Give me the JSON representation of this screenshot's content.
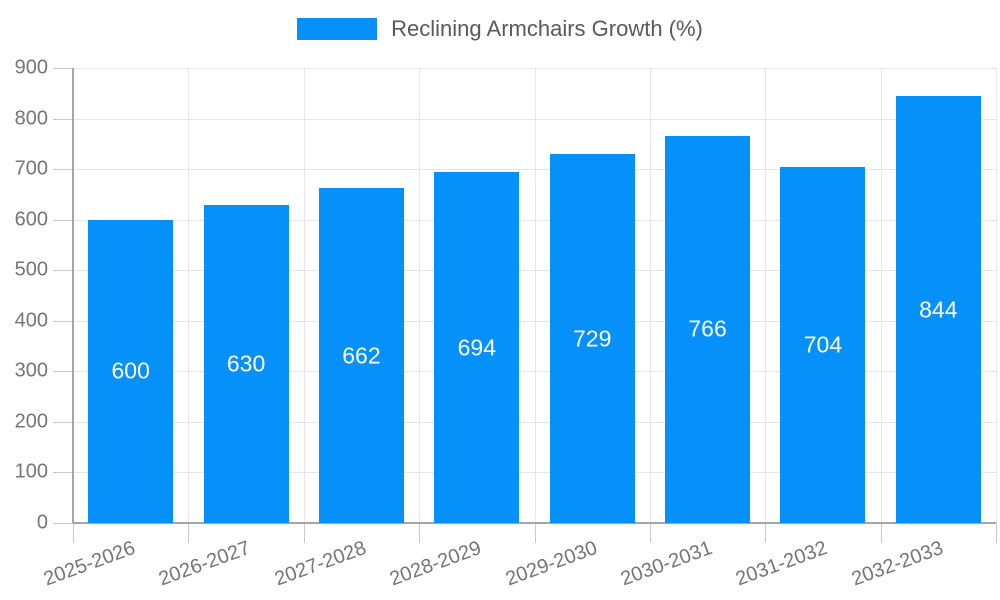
{
  "legend": {
    "label": "Reclining Armchairs Growth (%)"
  },
  "chart_data": {
    "type": "bar",
    "title": "",
    "categories": [
      "2025-2026",
      "2026-2027",
      "2027-2028",
      "2028-2029",
      "2029-2030",
      "2030-2031",
      "2031-2032",
      "2032-2033"
    ],
    "values": [
      600,
      630,
      662,
      694,
      729,
      766,
      704,
      844
    ],
    "series_name": "Reclining Armchairs Growth (%)",
    "xlabel": "",
    "ylabel": "",
    "ylim": [
      0,
      900
    ],
    "yticks": [
      0,
      100,
      200,
      300,
      400,
      500,
      600,
      700,
      800,
      900
    ],
    "grid": "on",
    "legend_position": "top",
    "bar_color": "#0690fa",
    "value_label_color": "#ffffff",
    "axis_text_color": "#757575"
  }
}
